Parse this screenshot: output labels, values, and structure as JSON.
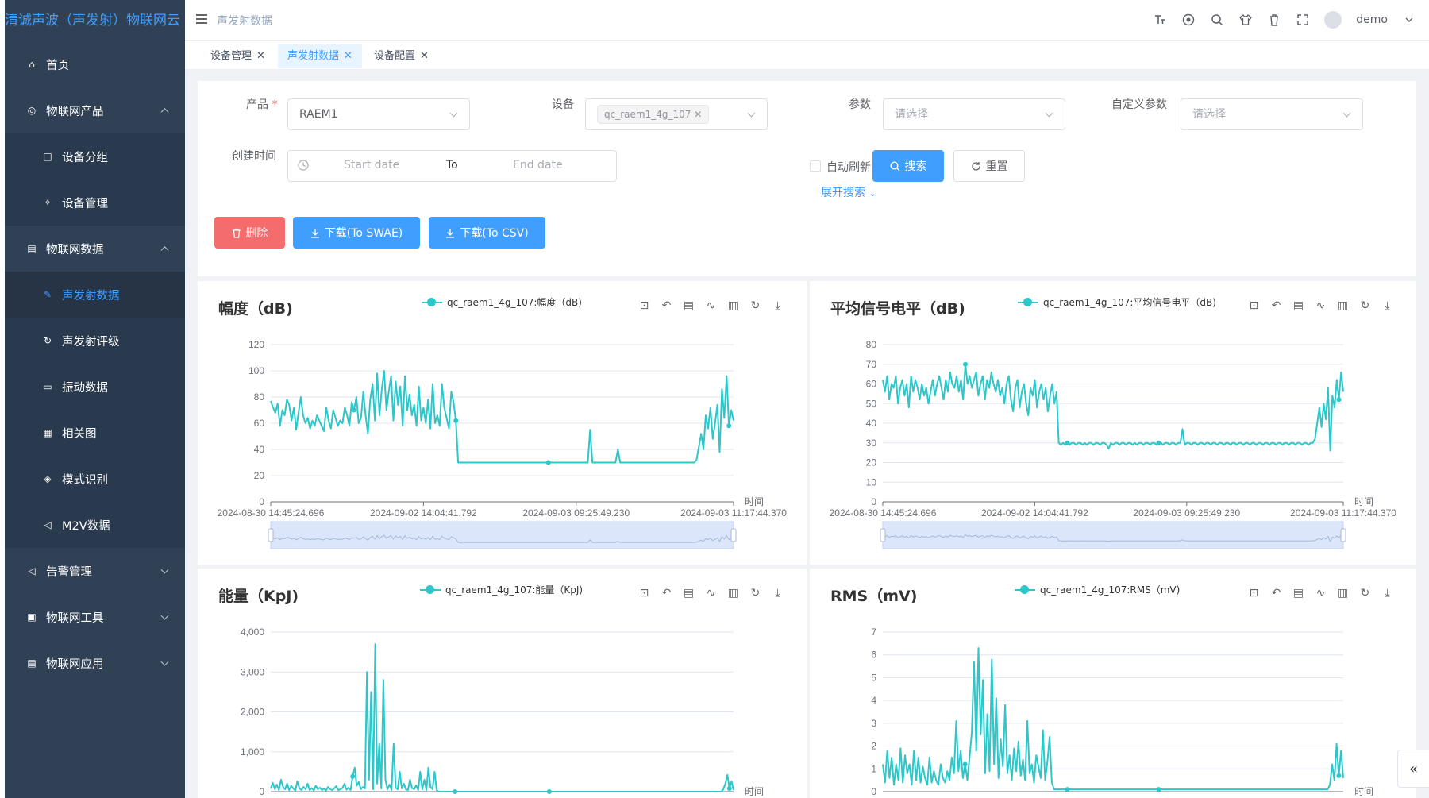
{
  "app": {
    "logo": "清诚声波（声发射）物联网云"
  },
  "header": {
    "breadcrumb": "声发射数据",
    "username": "demo"
  },
  "sidebar": {
    "items": [
      {
        "label": "首页",
        "icon": "home-icon"
      },
      {
        "label": "物联网产品",
        "icon": "globe-icon",
        "expanded": true
      },
      {
        "label": "设备分组",
        "icon": "square-icon"
      },
      {
        "label": "设备管理",
        "icon": "puzzle-icon"
      },
      {
        "label": "物联网数据",
        "icon": "data-icon",
        "expanded": true
      },
      {
        "label": "声发射数据",
        "icon": "edit-icon",
        "active": true
      },
      {
        "label": "声发射评级",
        "icon": "refresh-icon"
      },
      {
        "label": "振动数据",
        "icon": "folder-icon"
      },
      {
        "label": "相关图",
        "icon": "doc-icon"
      },
      {
        "label": "模式识别",
        "icon": "cube-icon"
      },
      {
        "label": "M2V数据",
        "icon": "sound-icon"
      },
      {
        "label": "告警管理",
        "icon": "speaker-icon"
      },
      {
        "label": "物联网工具",
        "icon": "tool-icon"
      },
      {
        "label": "物联网应用",
        "icon": "app-icon"
      }
    ]
  },
  "tabs": [
    {
      "label": "设备管理"
    },
    {
      "label": "声发射数据",
      "active": true
    },
    {
      "label": "设备配置"
    }
  ],
  "search": {
    "product_label": "产品",
    "product_value": "RAEM1",
    "device_label": "设备",
    "device_chip": "qc_raem1_4g_107",
    "param_label": "参数",
    "param_placeholder": "请选择",
    "custom_label": "自定义参数",
    "custom_placeholder": "请选择",
    "time_label": "创建时间",
    "start_placeholder": "Start date",
    "to": "To",
    "end_placeholder": "End date",
    "auto_refresh": "自动刷新",
    "search_btn": "搜索",
    "reset_btn": "重置",
    "expand": "展开搜索"
  },
  "actions": {
    "delete": "删除",
    "download_swae": "下载(To SWAE)",
    "download_csv": "下载(To CSV)"
  },
  "colors": {
    "series": "#2ec7c9",
    "primary": "#409eff",
    "danger": "#f56c6c",
    "sidebar": "#304156"
  },
  "chart_data": [
    {
      "type": "line",
      "title": "幅度（dB)",
      "legend": "qc_raem1_4g_107:幅度（dB)",
      "xlabel": "时间",
      "x_ticks": [
        "2024-08-30 14:45:24.696",
        "2024-09-02 14:04:41.792",
        "2024-09-03 09:25:49.230",
        "2024-09-03 11:17:44.370"
      ],
      "y_ticks": [
        "0",
        "20",
        "40",
        "60",
        "80",
        "100",
        "120"
      ],
      "ylim": [
        0,
        120
      ],
      "dataZoom": true,
      "series": [
        {
          "values": [
            77,
            72,
            68,
            75,
            58,
            70,
            66,
            78,
            74,
            62,
            72,
            55,
            68,
            80,
            66,
            60,
            64,
            56,
            62,
            58,
            66,
            62,
            58,
            54,
            72,
            62,
            56,
            70,
            64,
            58,
            62,
            60,
            72,
            66,
            58,
            76,
            70,
            80,
            60,
            64,
            84,
            66,
            52,
            78,
            90,
            62,
            98,
            66,
            86,
            100,
            70,
            84,
            96,
            62,
            92,
            74,
            88,
            58,
            96,
            70,
            82,
            66,
            74,
            58,
            88,
            62,
            72,
            60,
            78,
            56,
            90,
            60,
            66,
            58,
            90,
            72,
            64,
            56,
            84,
            76,
            62,
            30,
            30,
            30,
            30,
            30,
            30,
            30,
            30,
            30,
            30,
            30,
            30,
            30,
            30,
            30,
            30,
            30,
            30,
            30,
            30,
            30,
            30,
            30,
            30,
            30,
            30,
            30,
            30,
            30,
            30,
            30,
            30,
            30,
            30,
            30,
            30,
            30,
            30,
            30,
            30,
            30,
            30,
            30,
            30,
            30,
            30,
            30,
            30,
            30,
            30,
            30,
            30,
            30,
            30,
            30,
            30,
            30,
            55,
            30,
            30,
            30,
            30,
            30,
            30,
            30,
            30,
            30,
            30,
            30,
            40,
            30,
            30,
            30,
            30,
            30,
            30,
            30,
            30,
            30,
            30,
            30,
            30,
            30,
            30,
            30,
            30,
            30,
            30,
            30,
            30,
            30,
            30,
            30,
            30,
            30,
            30,
            30,
            30,
            30,
            30,
            30,
            30,
            30,
            32,
            42,
            52,
            40,
            66,
            56,
            72,
            48,
            60,
            74,
            38,
            86,
            64,
            96,
            58,
            70,
            62
          ]
        }
      ]
    },
    {
      "type": "line",
      "title": "平均信号电平（dB)",
      "legend": "qc_raem1_4g_107:平均信号电平（dB)",
      "xlabel": "时间",
      "x_ticks": [
        "2024-08-30 14:45:24.696",
        "2024-09-02 14:04:41.792",
        "2024-09-03 09:25:49.230",
        "2024-09-03 11:17:44.370"
      ],
      "y_ticks": [
        "0",
        "10",
        "20",
        "30",
        "40",
        "50",
        "60",
        "70",
        "80"
      ],
      "ylim": [
        0,
        80
      ],
      "dataZoom": true,
      "series": [
        {
          "values": [
            62,
            56,
            64,
            52,
            60,
            58,
            64,
            50,
            58,
            62,
            54,
            60,
            48,
            64,
            56,
            62,
            58,
            52,
            60,
            54,
            58,
            50,
            56,
            62,
            54,
            60,
            64,
            58,
            52,
            62,
            56,
            66,
            60,
            58,
            64,
            56,
            62,
            52,
            70,
            60,
            64,
            58,
            62,
            66,
            54,
            60,
            64,
            52,
            62,
            58,
            66,
            60,
            56,
            62,
            54,
            58,
            50,
            60,
            64,
            52,
            46,
            58,
            62,
            48,
            56,
            60,
            50,
            44,
            58,
            54,
            62,
            48,
            56,
            60,
            52,
            58,
            46,
            54,
            60,
            50,
            56,
            30,
            29,
            30,
            29,
            30,
            29,
            30,
            30,
            29,
            30,
            30,
            29,
            30,
            29,
            30,
            30,
            29,
            30,
            30,
            29,
            30,
            30,
            29,
            27,
            30,
            29,
            30,
            30,
            29,
            30,
            30,
            29,
            30,
            30,
            29,
            30,
            29,
            30,
            30,
            29,
            30,
            30,
            29,
            30,
            30,
            29,
            30,
            30,
            29,
            30,
            30,
            29,
            30,
            30,
            29,
            30,
            30,
            37,
            29,
            30,
            30,
            29,
            30,
            30,
            29,
            30,
            30,
            29,
            30,
            30,
            29,
            30,
            30,
            29,
            30,
            30,
            29,
            30,
            30,
            29,
            30,
            30,
            29,
            30,
            30,
            29,
            30,
            30,
            29,
            30,
            30,
            29,
            30,
            30,
            29,
            30,
            30,
            29,
            30,
            30,
            29,
            30,
            30,
            29,
            30,
            30,
            29,
            30,
            30,
            29,
            30,
            30,
            29,
            30,
            30,
            29,
            30,
            30,
            32,
            40,
            48,
            38,
            50,
            42,
            58,
            26,
            54,
            48,
            62,
            52,
            66,
            56
          ]
        }
      ]
    },
    {
      "type": "line",
      "title": "能量（KpJ)",
      "legend": "qc_raem1_4g_107:能量（KpJ)",
      "xlabel": "时间",
      "y_ticks": [
        "0",
        "1,000",
        "2,000",
        "3,000",
        "4,000"
      ],
      "ylim": [
        0,
        4000
      ],
      "series": [
        {
          "values": [
            80,
            220,
            60,
            180,
            40,
            300,
            120,
            60,
            200,
            40,
            150,
            80,
            30,
            260,
            90,
            40,
            120,
            60,
            200,
            40,
            90,
            30,
            150,
            60,
            100,
            40,
            80,
            30,
            120,
            60,
            40,
            80,
            140,
            40,
            60,
            90,
            200,
            50,
            100,
            40,
            380,
            600,
            150,
            240,
            60,
            120,
            80,
            3000,
            300,
            2500,
            60,
            3700,
            200,
            1200,
            80,
            2800,
            300,
            60,
            180,
            40,
            1200,
            100,
            60,
            500,
            80,
            200,
            60,
            40,
            300,
            90,
            60,
            160,
            40,
            500,
            60,
            300,
            40,
            600,
            120,
            60,
            500,
            40,
            0,
            0,
            0,
            0,
            0,
            0,
            0,
            0,
            0,
            0,
            0,
            0,
            0,
            0,
            0,
            0,
            0,
            0,
            0,
            0,
            0,
            0,
            0,
            0,
            0,
            0,
            0,
            0,
            0,
            0,
            0,
            0,
            0,
            0,
            0,
            0,
            0,
            0,
            0,
            0,
            0,
            0,
            0,
            0,
            0,
            0,
            0,
            0,
            0,
            0,
            0,
            0,
            0,
            0,
            0,
            0,
            0,
            0,
            0,
            0,
            0,
            0,
            0,
            0,
            0,
            0,
            0,
            0,
            0,
            0,
            0,
            0,
            0,
            0,
            0,
            0,
            0,
            0,
            0,
            0,
            0,
            0,
            0,
            0,
            0,
            0,
            0,
            0,
            0,
            0,
            0,
            0,
            0,
            0,
            0,
            0,
            0,
            0,
            0,
            0,
            0,
            0,
            0,
            0,
            0,
            0,
            0,
            0,
            0,
            0,
            0,
            0,
            0,
            0,
            0,
            0,
            0,
            0,
            0,
            0,
            0,
            0,
            0,
            0,
            0,
            0,
            0,
            0,
            0,
            0,
            0,
            0,
            0,
            0,
            0,
            0,
            0,
            0,
            0,
            60,
            200,
            420,
            80,
            260,
            40
          ]
        }
      ]
    },
    {
      "type": "line",
      "title": "RMS（mV)",
      "legend": "qc_raem1_4g_107:RMS（mV)",
      "xlabel": "时间",
      "y_ticks": [
        "0",
        "1",
        "2",
        "3",
        "4",
        "5",
        "6",
        "7"
      ],
      "ylim": [
        0,
        7
      ],
      "series": [
        {
          "values": [
            1.2,
            0.4,
            1.8,
            0.6,
            1.5,
            0.3,
            1.2,
            0.5,
            1.9,
            0.4,
            1.6,
            0.8,
            1.2,
            0.3,
            1.8,
            0.5,
            1.5,
            0.4,
            1.1,
            0.6,
            0.3,
            1.5,
            0.4,
            0.9,
            0.5,
            0.3,
            1.2,
            0.6,
            0.4,
            0.9,
            0.5,
            1.5,
            0.8,
            3.1,
            0.9,
            1.8,
            0.6,
            1.2,
            0.5,
            1.5,
            2.6,
            5.7,
            1.8,
            6.3,
            2.5,
            4.9,
            0.8,
            3.4,
            0.9,
            5.8,
            1.2,
            4.1,
            0.6,
            2.3,
            1.1,
            3.8,
            0.8,
            1.6,
            0.5,
            1.9,
            0.9,
            2.2,
            0.7,
            1.4,
            0.5,
            3.1,
            0.8,
            1.2,
            0.4,
            1.6,
            1.1,
            0.6,
            2.7,
            0.5,
            1.3,
            2.4,
            0.4,
            0.1,
            0.1,
            0.1,
            0.1,
            0.1,
            0.1,
            0.1,
            0.1,
            0.1,
            0.1,
            0.1,
            0.1,
            0.1,
            0.1,
            0.1,
            0.1,
            0.1,
            0.1,
            0.1,
            0.1,
            0.1,
            0.1,
            0.1,
            0.1,
            0.1,
            0.1,
            0.1,
            0.1,
            0.1,
            0.1,
            0.1,
            0.1,
            0.1,
            0.1,
            0.1,
            0.1,
            0.1,
            0.1,
            0.1,
            0.1,
            0.1,
            0.1,
            0.1,
            0.1,
            0.1,
            0.1,
            0.1,
            0.1,
            0.1,
            0.1,
            0.1,
            0.1,
            0.1,
            0.1,
            0.1,
            0.1,
            0.1,
            0.1,
            0.1,
            0.1,
            0.1,
            0.1,
            0.1,
            0.1,
            0.1,
            0.1,
            0.1,
            0.1,
            0.1,
            0.1,
            0.1,
            0.1,
            0.1,
            0.1,
            0.1,
            0.1,
            0.1,
            0.1,
            0.1,
            0.1,
            0.1,
            0.1,
            0.1,
            0.1,
            0.1,
            0.1,
            0.1,
            0.1,
            0.1,
            0.1,
            0.1,
            0.1,
            0.1,
            0.1,
            0.1,
            0.1,
            0.1,
            0.1,
            0.1,
            0.1,
            0.1,
            0.1,
            0.1,
            0.1,
            0.1,
            0.1,
            0.1,
            0.1,
            0.1,
            0.1,
            0.1,
            0.1,
            0.1,
            0.1,
            0.1,
            0.1,
            0.1,
            0.1,
            0.1,
            0.1,
            0.1,
            0.1,
            0.1,
            0.1,
            0.3,
            1.2,
            0.5,
            2.1,
            0.7,
            1.8,
            0.6
          ]
        }
      ]
    }
  ]
}
